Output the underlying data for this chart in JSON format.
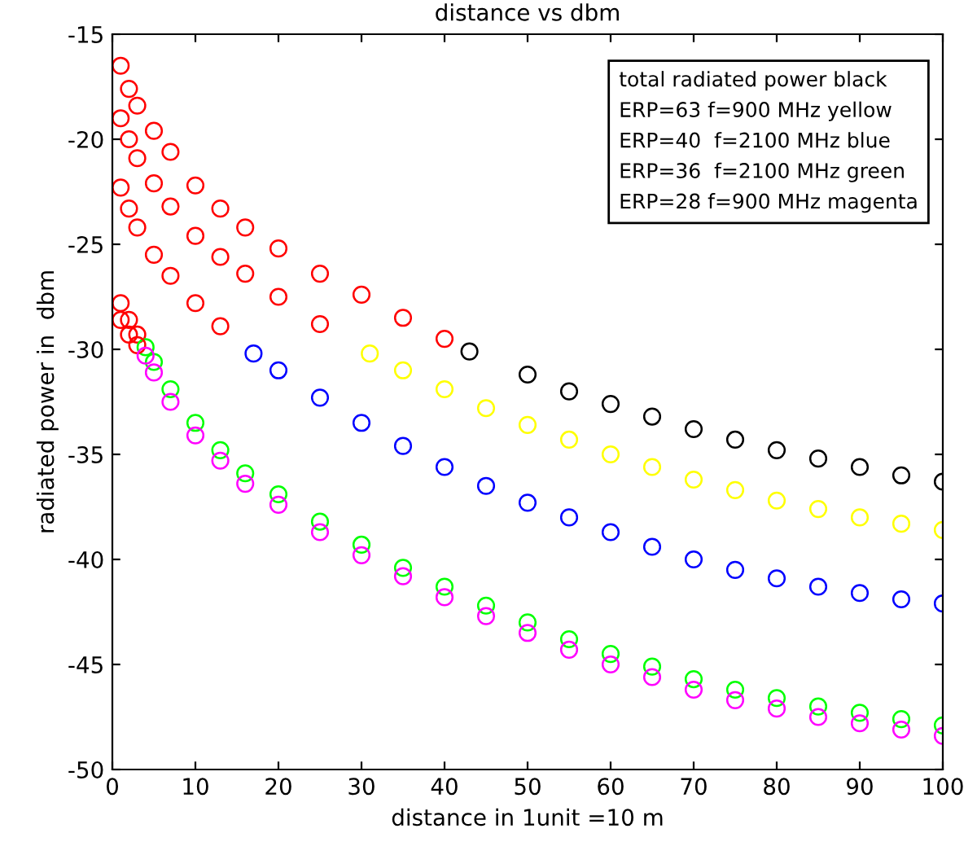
{
  "chart_data": {
    "type": "scatter",
    "title": "distance vs dbm",
    "xlabel": "distance in 1unit =10 m",
    "ylabel": "radiated power in  dbm",
    "marker": "circle",
    "grid": false,
    "xlim": [
      0,
      100
    ],
    "xticks": [
      0,
      10,
      20,
      30,
      40,
      50,
      60,
      70,
      80,
      90,
      100
    ],
    "ylim": [
      -50,
      -15
    ],
    "yticks": [
      -50,
      -45,
      -40,
      -35,
      -30,
      -25,
      -20,
      -15
    ],
    "annotations": [
      "total radiated power black",
      "ERP=63 f=900 MHz yellow",
      "ERP=40  f=2100 MHz blue",
      "ERP=36  f=2100 MHz green",
      "ERP=28 f=900 MHz magenta"
    ],
    "series": [
      {
        "color": "#ff0000",
        "x": [
          1,
          2,
          3,
          5,
          7,
          10,
          13,
          16,
          20,
          25,
          30,
          35,
          40
        ],
        "values": [
          -16.5,
          -17.6,
          -18.4,
          -19.6,
          -20.6,
          -22.2,
          -23.3,
          -24.2,
          -25.2,
          -26.4,
          -27.4,
          -28.5,
          -29.5
        ]
      },
      {
        "color": "#000000",
        "x": [
          43,
          50,
          55,
          60,
          65,
          70,
          75,
          80,
          85,
          90,
          95,
          100
        ],
        "values": [
          -30.1,
          -31.2,
          -32,
          -32.6,
          -33.2,
          -33.8,
          -34.3,
          -34.8,
          -35.2,
          -35.6,
          -36,
          -36.3
        ]
      },
      {
        "color": "#ff0000",
        "x": [
          1,
          2,
          3,
          5,
          7,
          10,
          13,
          16,
          20,
          25
        ],
        "values": [
          -19,
          -20,
          -20.9,
          -22.1,
          -23.2,
          -24.6,
          -25.6,
          -26.4,
          -27.5,
          -28.8
        ]
      },
      {
        "color": "#ffff00",
        "x": [
          31,
          35,
          40,
          45,
          50,
          55,
          60,
          65,
          70,
          75,
          80,
          85,
          90,
          95,
          100
        ],
        "values": [
          -30.2,
          -31,
          -31.9,
          -32.8,
          -33.6,
          -34.3,
          -35,
          -35.6,
          -36.2,
          -36.7,
          -37.2,
          -37.6,
          -38,
          -38.3,
          -38.6
        ]
      },
      {
        "color": "#ff0000",
        "x": [
          1,
          2,
          3,
          5,
          7,
          10,
          13
        ],
        "values": [
          -22.3,
          -23.3,
          -24.2,
          -25.5,
          -26.5,
          -27.8,
          -28.9
        ]
      },
      {
        "color": "#0000ff",
        "x": [
          17,
          20,
          25,
          30,
          35,
          40,
          45,
          50,
          55,
          60,
          65,
          70,
          75,
          80,
          85,
          90,
          95,
          100
        ],
        "values": [
          -30.2,
          -31,
          -32.3,
          -33.5,
          -34.6,
          -35.6,
          -36.5,
          -37.3,
          -38,
          -38.7,
          -39.4,
          -40,
          -40.5,
          -40.9,
          -41.3,
          -41.6,
          -41.9,
          -42.1
        ]
      },
      {
        "color": "#ff0000",
        "x": [
          1,
          2,
          3
        ],
        "values": [
          -27.8,
          -28.6,
          -29.3
        ]
      },
      {
        "color": "#00ff00",
        "x": [
          4,
          5,
          7,
          10,
          13,
          16,
          20,
          25,
          30,
          35,
          40,
          45,
          50,
          55,
          60,
          65,
          70,
          75,
          80,
          85,
          90,
          95,
          100
        ],
        "values": [
          -29.9,
          -30.6,
          -31.9,
          -33.5,
          -34.8,
          -35.9,
          -36.9,
          -38.2,
          -39.3,
          -40.4,
          -41.3,
          -42.2,
          -43,
          -43.8,
          -44.5,
          -45.1,
          -45.7,
          -46.2,
          -46.6,
          -47,
          -47.3,
          -47.6,
          -47.9
        ]
      },
      {
        "color": "#ff0000",
        "x": [
          1,
          2,
          3
        ],
        "values": [
          -28.6,
          -29.3,
          -29.8
        ]
      },
      {
        "color": "#ff00ff",
        "x": [
          4,
          5,
          7,
          10,
          13,
          16,
          20,
          25,
          30,
          35,
          40,
          45,
          50,
          55,
          60,
          65,
          70,
          75,
          80,
          85,
          90,
          95,
          100
        ],
        "values": [
          -30.3,
          -31.1,
          -32.5,
          -34.1,
          -35.3,
          -36.4,
          -37.4,
          -38.7,
          -39.8,
          -40.8,
          -41.8,
          -42.7,
          -43.5,
          -44.3,
          -45,
          -45.6,
          -46.2,
          -46.7,
          -47.1,
          -47.5,
          -47.8,
          -48.1,
          -48.4
        ]
      }
    ]
  }
}
